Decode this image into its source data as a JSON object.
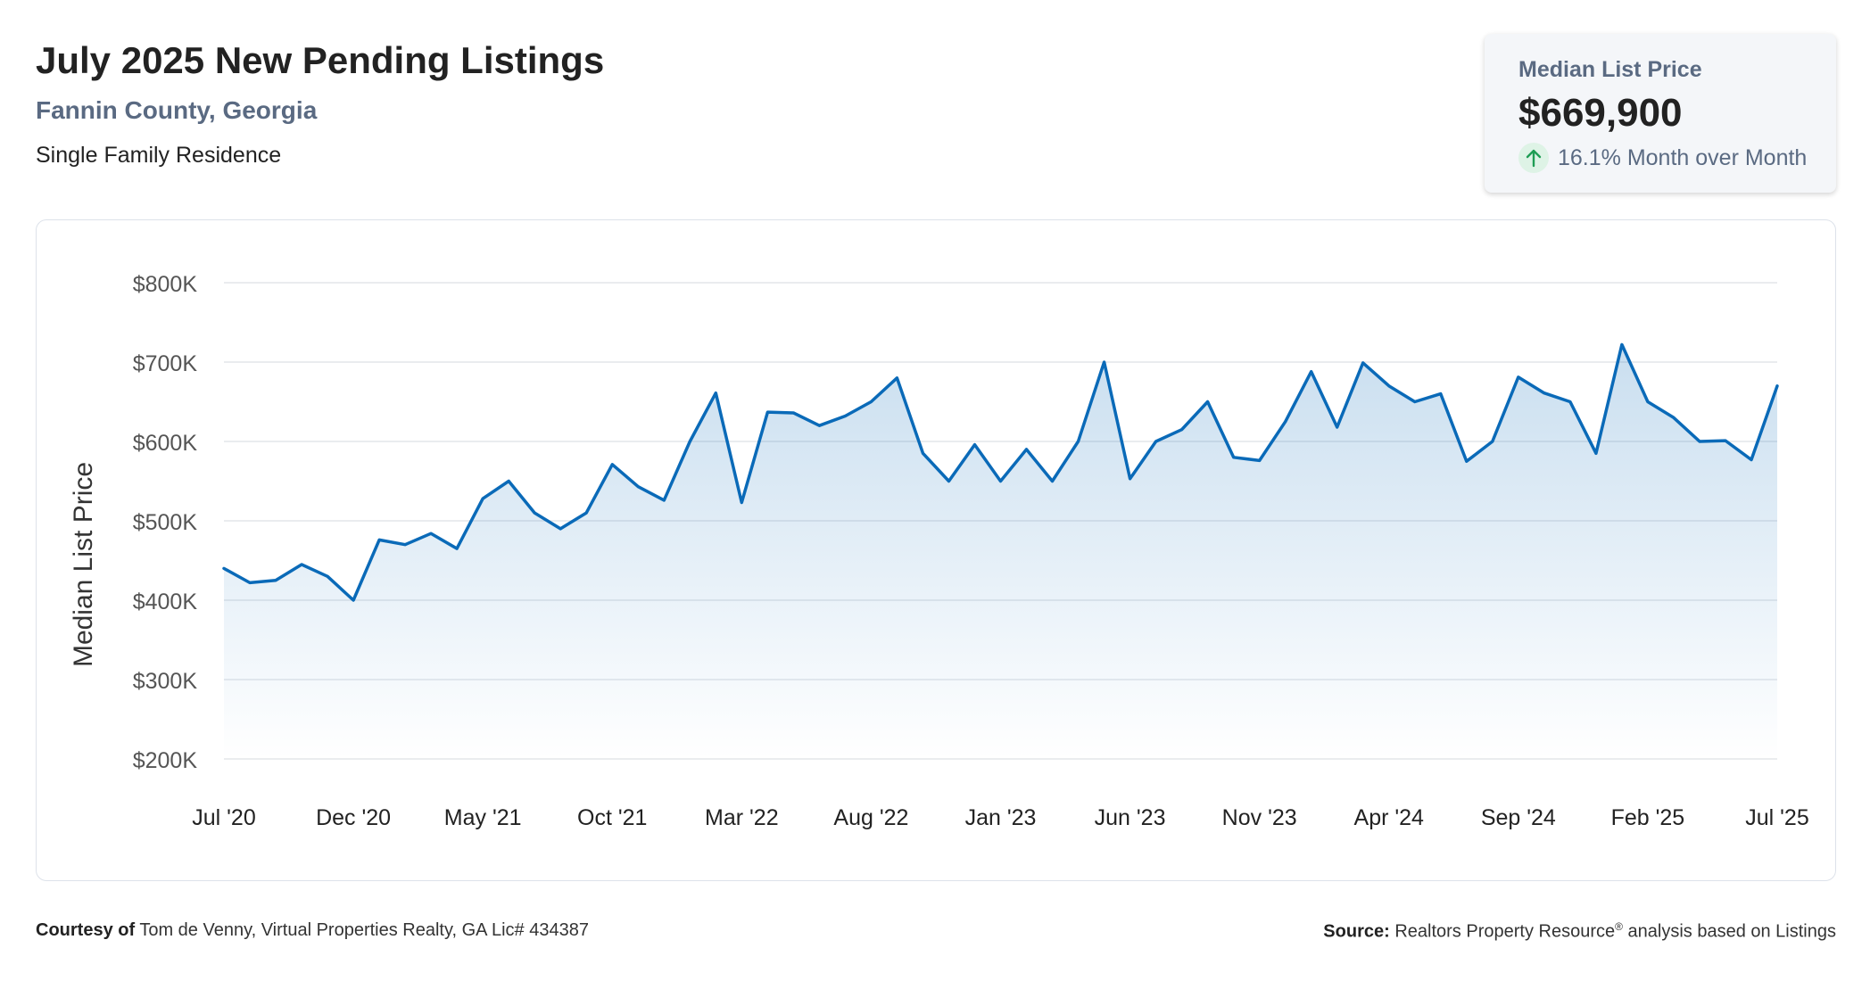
{
  "header": {
    "title": "July 2025 New Pending Listings",
    "location": "Fannin County, Georgia",
    "property_type": "Single Family Residence"
  },
  "kpi": {
    "label": "Median List Price",
    "value": "$669,900",
    "change": "16.1% Month over Month",
    "direction": "up",
    "icon": "arrow-up-icon",
    "icon_color": "#1f9d55"
  },
  "chart_data": {
    "type": "area",
    "title": "",
    "xlabel": "",
    "ylabel": "Median List Price",
    "ylim": [
      200000,
      800000
    ],
    "y_ticks": [
      200000,
      300000,
      400000,
      500000,
      600000,
      700000,
      800000
    ],
    "y_tick_labels": [
      "$200K",
      "$300K",
      "$400K",
      "$500K",
      "$600K",
      "$700K",
      "$800K"
    ],
    "x_tick_labels": [
      "Jul '20",
      "Dec '20",
      "May '21",
      "Oct '21",
      "Mar '22",
      "Aug '22",
      "Jan '23",
      "Jun '23",
      "Nov '23",
      "Apr '24",
      "Sep '24",
      "Feb '25",
      "Jul '25"
    ],
    "x_start": "2020-07",
    "x_end": "2025-07",
    "grid": true,
    "line_color": "#0a6ab8",
    "fill_color": "#0a6ab8",
    "series": [
      {
        "values": [
          440000,
          422000,
          425000,
          445000,
          430000,
          400000,
          476000,
          470000,
          484000,
          465000,
          528000,
          550000,
          510000,
          490000,
          510000,
          571000,
          543000,
          526000,
          600000,
          661000,
          523000,
          637000,
          636000,
          620000,
          632000,
          650000,
          680000,
          585000,
          550000,
          596000,
          550000,
          590000,
          550000,
          600000,
          700000,
          553000,
          600000,
          615000,
          650000,
          580000,
          576000,
          625000,
          688000,
          618000,
          699000,
          670000,
          650000,
          660000,
          575000,
          600000,
          681000,
          661000,
          650000,
          585000,
          722000,
          650000,
          630000,
          600000,
          601000,
          577000,
          669900
        ]
      }
    ]
  },
  "footer": {
    "courtesy_label": "Courtesy of",
    "courtesy_text": "Tom de Venny, Virtual Properties Realty, GA Lic# 434387",
    "source_label": "Source:",
    "source_text": "Realtors Property Resource",
    "source_reg": "®",
    "source_suffix": " analysis based on Listings"
  }
}
